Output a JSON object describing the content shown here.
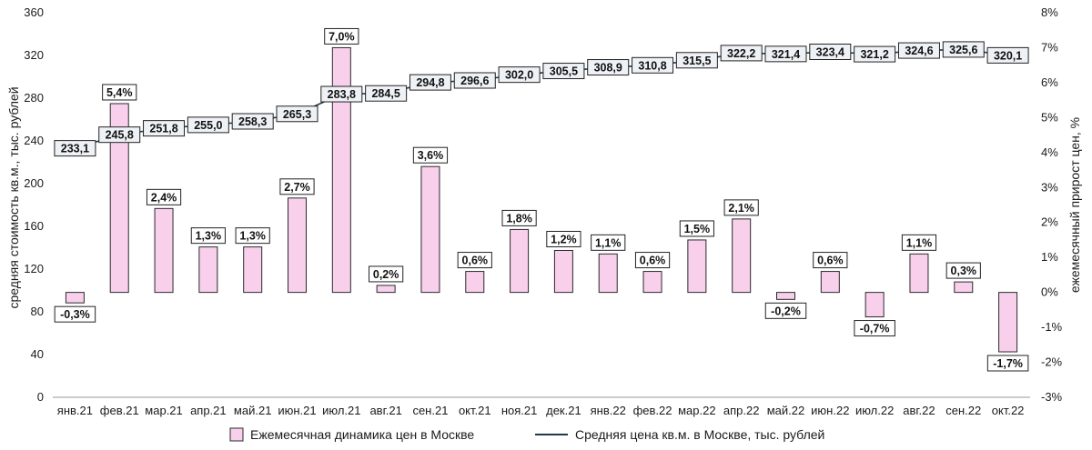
{
  "chart_data": {
    "type": "bar",
    "categories": [
      "янв.21",
      "фев.21",
      "мар.21",
      "апр.21",
      "май.21",
      "июн.21",
      "июл.21",
      "авг.21",
      "сен.21",
      "окт.21",
      "ноя.21",
      "дек.21",
      "янв.22",
      "фев.22",
      "мар.22",
      "апр.22",
      "май.22",
      "июн.22",
      "июл.22",
      "авг.22",
      "сен.22",
      "окт.22"
    ],
    "series": [
      {
        "name": "Ежемесячная динамика цен в Москве",
        "type": "bar",
        "axis": "right",
        "values": [
          -0.3,
          5.4,
          2.4,
          1.3,
          1.3,
          2.7,
          7.0,
          0.2,
          3.6,
          0.6,
          1.8,
          1.2,
          1.1,
          0.6,
          1.5,
          2.1,
          -0.2,
          0.6,
          -0.7,
          1.1,
          0.3,
          -1.7
        ],
        "labels": [
          "-0,3%",
          "5,4%",
          "2,4%",
          "1,3%",
          "1,3%",
          "2,7%",
          "7,0%",
          "0,2%",
          "3,6%",
          "0,6%",
          "1,8%",
          "1,2%",
          "1,1%",
          "0,6%",
          "1,5%",
          "2,1%",
          "-0,2%",
          "0,6%",
          "-0,7%",
          "1,1%",
          "0,3%",
          "-1,7%"
        ],
        "color": "#f8d0ec"
      },
      {
        "name": "Средняя цена кв.м. в Москве, тыс. рублей",
        "type": "line",
        "axis": "left",
        "values": [
          233.1,
          245.8,
          251.8,
          255.0,
          258.3,
          265.3,
          283.8,
          284.5,
          294.8,
          296.6,
          302.0,
          305.5,
          308.9,
          310.8,
          315.5,
          322.2,
          321.4,
          323.4,
          321.2,
          324.6,
          325.6,
          320.1
        ],
        "labels": [
          "233,1",
          "245,8",
          "251,8",
          "255,0",
          "258,3",
          "265,3",
          "283,8",
          "284,5",
          "294,8",
          "296,6",
          "302,0",
          "305,5",
          "308,9",
          "310,8",
          "315,5",
          "322,2",
          "321,4",
          "323,4",
          "321,2",
          "324,6",
          "325,6",
          "320,1"
        ],
        "color": "#1e3a44"
      }
    ],
    "ylabel_left": "средняя стоимость кв.м., тыс. рублей",
    "ylabel_right": "ежемесячный прирост цен, %",
    "ylim_left": [
      0,
      360
    ],
    "ylim_right": [
      -3,
      8
    ],
    "yticks_left": [
      "0",
      "40",
      "80",
      "120",
      "160",
      "200",
      "240",
      "280",
      "320",
      "360"
    ],
    "yticks_right": [
      "-3%",
      "-2%",
      "-1%",
      "0%",
      "1%",
      "2%",
      "3%",
      "4%",
      "5%",
      "6%",
      "7%",
      "8%"
    ],
    "grid": false,
    "legend_position": "bottom"
  }
}
